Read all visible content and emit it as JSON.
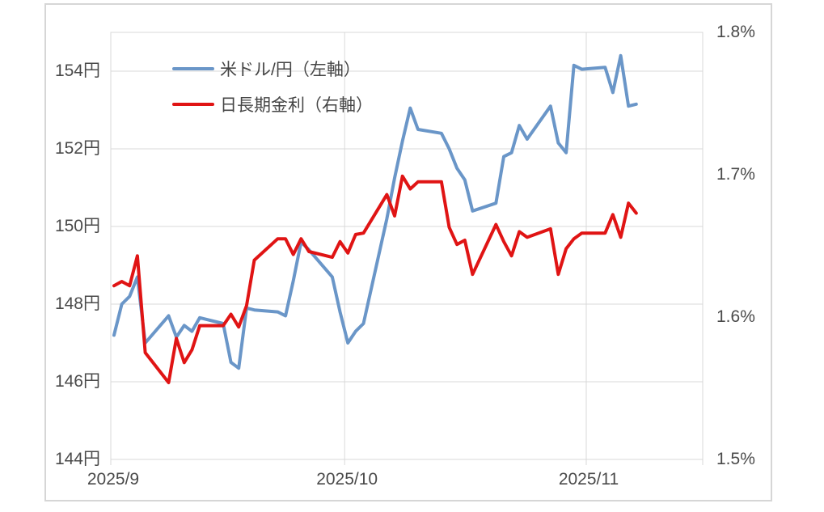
{
  "chart_data": {
    "type": "line",
    "grid": true,
    "legend_position": "top-left-inside",
    "x_axis": {
      "start_date": "2025-09-01",
      "tick_dates": [
        "2025-09-01",
        "2025-10-01",
        "2025-11-01"
      ],
      "tick_labels": [
        "2025/9",
        "2025/10",
        "2025/11"
      ]
    },
    "left_axis": {
      "min": 144,
      "max": 155,
      "ticks": [
        144,
        146,
        148,
        150,
        152,
        154
      ],
      "labels": [
        "144円",
        "146円",
        "148円",
        "150円",
        "152円",
        "154円"
      ]
    },
    "right_axis": {
      "min": 1.5,
      "max": 1.8,
      "ticks": [
        1.5,
        1.6,
        1.7,
        1.8
      ],
      "labels": [
        "1.5%",
        "1.6%",
        "1.7%",
        "1.8%"
      ]
    },
    "dates": [
      "2025-09-01",
      "2025-09-02",
      "2025-09-03",
      "2025-09-04",
      "2025-09-05",
      "2025-09-08",
      "2025-09-09",
      "2025-09-10",
      "2025-09-11",
      "2025-09-12",
      "2025-09-15",
      "2025-09-16",
      "2025-09-17",
      "2025-09-18",
      "2025-09-19",
      "2025-09-22",
      "2025-09-23",
      "2025-09-24",
      "2025-09-25",
      "2025-09-26",
      "2025-09-29",
      "2025-09-30",
      "2025-10-01",
      "2025-10-02",
      "2025-10-03",
      "2025-10-06",
      "2025-10-07",
      "2025-10-08",
      "2025-10-09",
      "2025-10-10",
      "2025-10-13",
      "2025-10-14",
      "2025-10-15",
      "2025-10-16",
      "2025-10-17",
      "2025-10-20",
      "2025-10-21",
      "2025-10-22",
      "2025-10-23",
      "2025-10-24",
      "2025-10-27",
      "2025-10-28",
      "2025-10-29",
      "2025-10-30",
      "2025-10-31",
      "2025-11-03",
      "2025-11-04",
      "2025-11-05",
      "2025-11-06",
      "2025-11-07"
    ],
    "series": [
      {
        "name": "米ドル/円（左軸）",
        "axis": "left",
        "color": "#6A96C8",
        "values": [
          147.2,
          148.0,
          148.2,
          148.7,
          147.0,
          147.7,
          147.15,
          147.45,
          147.3,
          147.65,
          147.5,
          146.5,
          146.35,
          147.9,
          147.85,
          147.8,
          147.7,
          148.6,
          149.6,
          149.4,
          148.7,
          147.8,
          147.0,
          147.3,
          147.5,
          150.2,
          151.25,
          152.2,
          153.05,
          152.5,
          152.4,
          152.0,
          151.5,
          151.2,
          150.4,
          150.6,
          151.8,
          151.9,
          152.6,
          152.25,
          153.1,
          152.15,
          151.9,
          154.15,
          154.05,
          154.1,
          153.45,
          154.4,
          153.1,
          153.15
        ]
      },
      {
        "name": "日長期金利（右軸）",
        "axis": "right",
        "color": "#E01414",
        "values": [
          1.622,
          1.625,
          1.622,
          1.643,
          1.575,
          1.554,
          1.585,
          1.568,
          1.577,
          1.594,
          1.594,
          1.602,
          1.593,
          1.608,
          1.64,
          1.655,
          1.655,
          1.644,
          1.655,
          1.646,
          1.642,
          1.653,
          1.645,
          1.658,
          1.659,
          1.686,
          1.671,
          1.699,
          1.69,
          1.695,
          1.695,
          1.663,
          1.651,
          1.654,
          1.63,
          1.665,
          1.653,
          1.643,
          1.66,
          1.656,
          1.662,
          1.63,
          1.648,
          1.655,
          1.659,
          1.659,
          1.672,
          1.656,
          1.68,
          1.673
        ]
      }
    ],
    "colors": {
      "gridline": "#D9D9D9",
      "plot_border": "#D9D9D9",
      "frame_border": "#D6D6D6",
      "text": "#4A4A4A"
    }
  }
}
